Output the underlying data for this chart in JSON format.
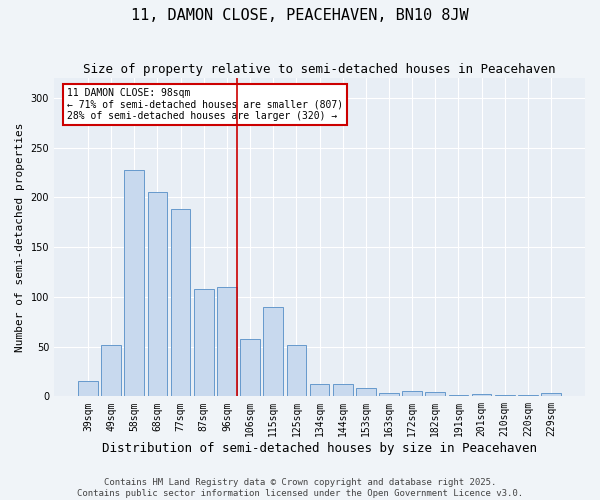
{
  "title": "11, DAMON CLOSE, PEACEHAVEN, BN10 8JW",
  "subtitle": "Size of property relative to semi-detached houses in Peacehaven",
  "xlabel": "Distribution of semi-detached houses by size in Peacehaven",
  "ylabel": "Number of semi-detached properties",
  "categories": [
    "39sqm",
    "49sqm",
    "58sqm",
    "68sqm",
    "77sqm",
    "87sqm",
    "96sqm",
    "106sqm",
    "115sqm",
    "125sqm",
    "134sqm",
    "144sqm",
    "153sqm",
    "163sqm",
    "172sqm",
    "182sqm",
    "191sqm",
    "201sqm",
    "210sqm",
    "220sqm",
    "229sqm"
  ],
  "values": [
    15,
    52,
    228,
    205,
    188,
    108,
    110,
    58,
    90,
    52,
    12,
    12,
    8,
    3,
    5,
    4,
    1,
    2,
    1,
    1,
    3
  ],
  "bar_color": "#c8d9ee",
  "bar_edge_color": "#6699cc",
  "vline_index": 6,
  "vline_color": "#cc0000",
  "annotation_title": "11 DAMON CLOSE: 98sqm",
  "annotation_line1": "← 71% of semi-detached houses are smaller (807)",
  "annotation_line2": "28% of semi-detached houses are larger (320) →",
  "annotation_box_color": "#ffffff",
  "annotation_box_edge": "#cc0000",
  "ylim": [
    0,
    320
  ],
  "yticks": [
    0,
    50,
    100,
    150,
    200,
    250,
    300
  ],
  "plot_bg_color": "#e8eef5",
  "fig_bg_color": "#f0f4f8",
  "footer_line1": "Contains HM Land Registry data © Crown copyright and database right 2025.",
  "footer_line2": "Contains public sector information licensed under the Open Government Licence v3.0.",
  "title_fontsize": 11,
  "subtitle_fontsize": 9,
  "xlabel_fontsize": 9,
  "ylabel_fontsize": 8,
  "tick_fontsize": 7,
  "annotation_fontsize": 7,
  "footer_fontsize": 6.5
}
